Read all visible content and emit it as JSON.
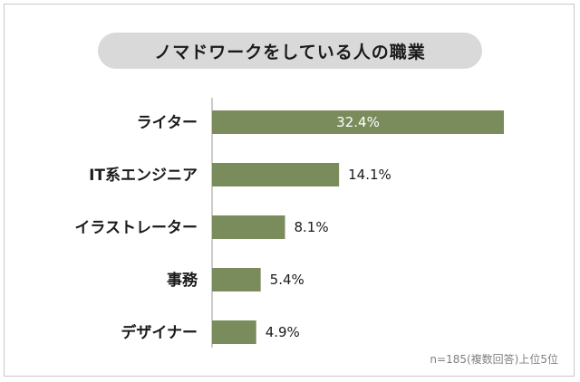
{
  "chart_data": {
    "type": "bar",
    "orientation": "horizontal",
    "title": "ノマドワークをしている人の職業",
    "categories": [
      "ライター",
      "IT系エンジニア",
      "イラストレーター",
      "事務",
      "デザイナー"
    ],
    "values": [
      32.4,
      14.1,
      8.1,
      5.4,
      4.9
    ],
    "value_labels": [
      "32.4%",
      "14.1%",
      "8.1%",
      "5.4%",
      "4.9%"
    ],
    "xlim": [
      0,
      32.4
    ],
    "grid": false,
    "bar_color": "#7a8c5c",
    "note": "n=185(複数回答)上位5位"
  }
}
